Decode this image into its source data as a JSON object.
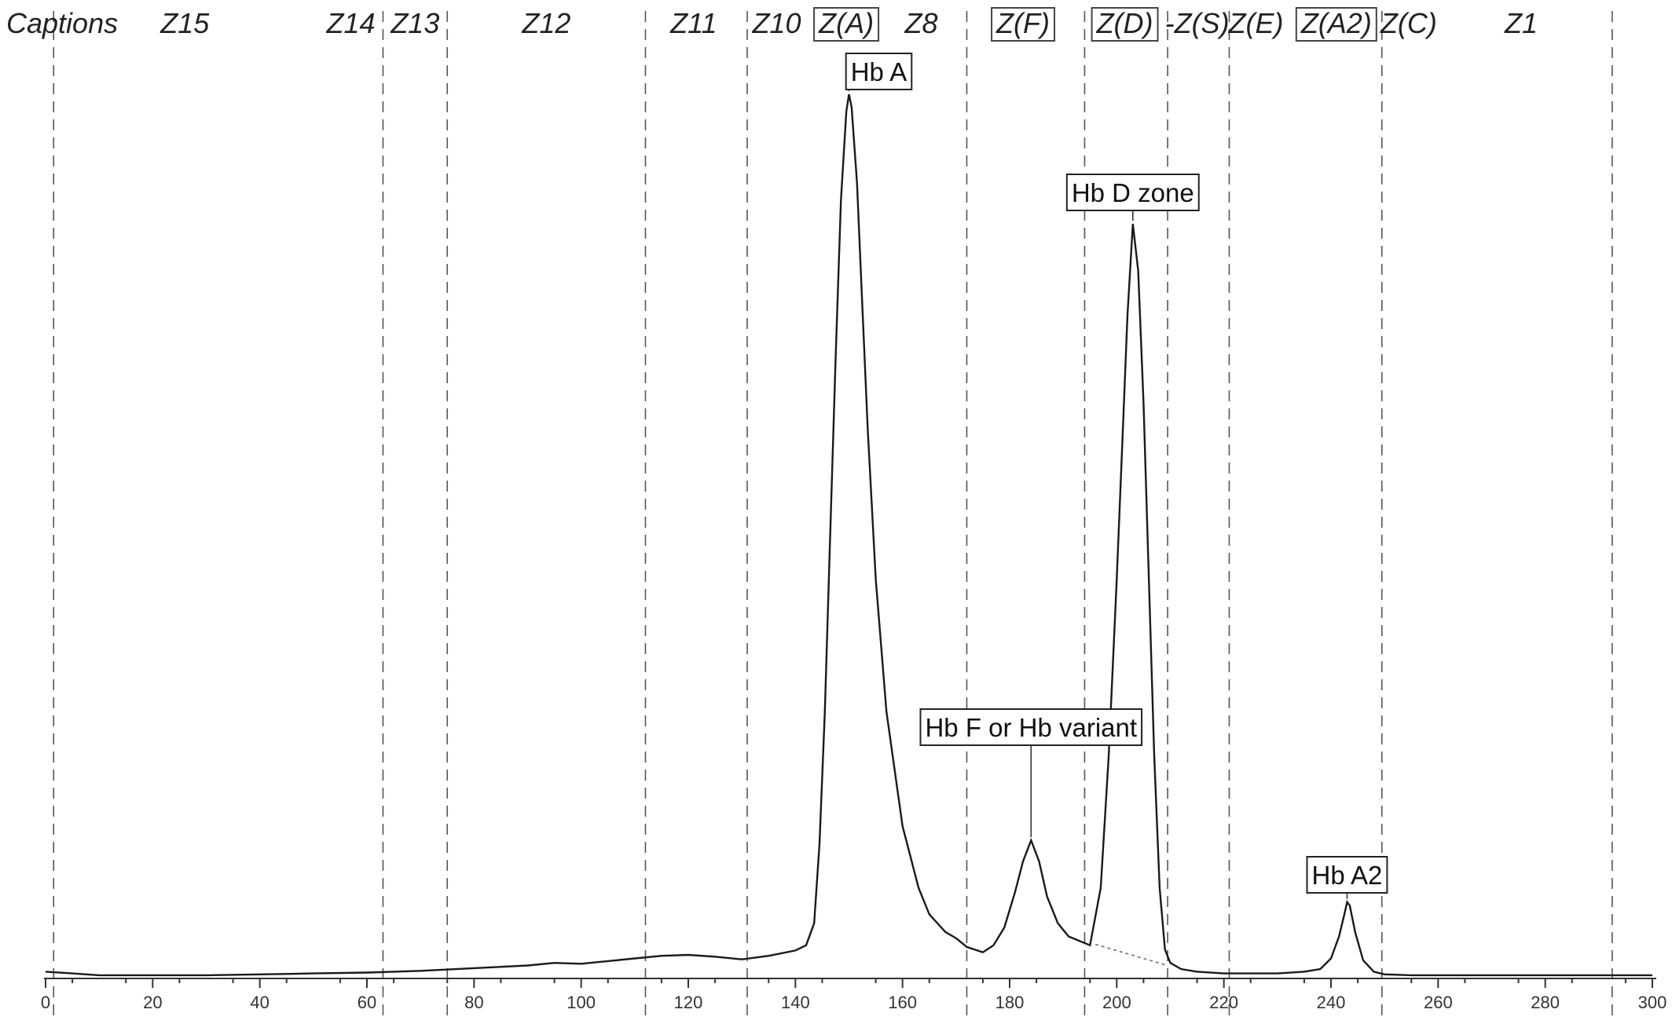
{
  "chart_data": {
    "type": "line",
    "title": "",
    "xlabel": "",
    "ylabel": "",
    "xlim": [
      0,
      300
    ],
    "x_ticks": [
      0,
      20,
      40,
      60,
      80,
      100,
      120,
      140,
      160,
      180,
      200,
      220,
      240,
      260,
      280,
      300
    ],
    "grid": false,
    "captions_label": "Captions",
    "zone_boundaries": [
      1.5,
      63,
      75,
      112,
      131,
      172,
      194,
      209.5,
      221,
      249.5,
      292.5
    ],
    "zones": [
      {
        "label": "Z15",
        "center": 26,
        "boxed": false
      },
      {
        "label": "Z14",
        "center": 57,
        "boxed": false
      },
      {
        "label": "Z13",
        "center": 69,
        "boxed": false
      },
      {
        "label": "Z12",
        "center": 93.5,
        "boxed": false
      },
      {
        "label": "Z11",
        "center": 121,
        "boxed": false
      },
      {
        "label": "Z10",
        "center": 136.5,
        "boxed": false
      },
      {
        "label": "Z(A)",
        "center": 149.5,
        "boxed": true
      },
      {
        "label": "Z8",
        "center": 163.5,
        "boxed": false
      },
      {
        "label": "Z(F)",
        "center": 182.5,
        "boxed": true
      },
      {
        "label": "Z(D)",
        "center": 201.5,
        "boxed": true
      },
      {
        "label": "-Z(S)",
        "center": 215,
        "boxed": false
      },
      {
        "label": "Z(E)",
        "center": 226,
        "boxed": false
      },
      {
        "label": "Z(A2)",
        "center": 241,
        "boxed": true
      },
      {
        "label": "Z(C)",
        "center": 254.5,
        "boxed": false
      },
      {
        "label": "Z1",
        "center": 275.5,
        "boxed": false
      }
    ],
    "peaks": [
      {
        "label": "Hb A",
        "x": 150,
        "height": 100
      },
      {
        "label": "Hb F or Hb variant",
        "x": 184,
        "height": 15.4
      },
      {
        "label": "Hb D zone",
        "x": 203,
        "height": 85.3
      },
      {
        "label": "Hb A2",
        "x": 243,
        "height": 8.4
      }
    ],
    "series": [
      {
        "x": [
          0,
          5,
          10,
          20,
          30,
          40,
          50,
          60,
          70,
          80,
          90,
          95,
          100,
          105,
          110,
          115,
          120,
          125,
          130,
          135,
          140,
          142,
          143.5,
          144.5,
          145.5,
          146.5,
          147.5,
          148.5,
          149.5,
          150,
          150.5,
          151.5,
          152.5,
          153.5,
          155,
          157,
          160,
          163,
          165,
          168,
          170,
          172,
          175,
          177,
          179,
          181,
          182.5,
          184,
          185.5,
          187,
          189,
          191,
          193,
          195,
          197,
          198.5,
          200,
          201,
          202,
          203,
          204,
          205,
          206,
          207,
          208,
          209,
          210,
          212,
          215,
          220,
          225,
          230,
          235,
          238,
          240,
          241.5,
          242.5,
          243,
          243.5,
          244.5,
          246,
          248,
          250,
          255,
          260,
          270,
          280,
          290,
          295,
          300
        ],
        "y": [
          0.5,
          0.3,
          0.1,
          0.1,
          0.1,
          0.2,
          0.3,
          0.4,
          0.6,
          0.9,
          1.2,
          1.5,
          1.4,
          1.7,
          2.0,
          2.3,
          2.4,
          2.2,
          1.9,
          2.3,
          2.9,
          3.5,
          6,
          15,
          30,
          50,
          70,
          88,
          98,
          100,
          98.5,
          90,
          76,
          62,
          45,
          30,
          17,
          10,
          7,
          5,
          4.3,
          3.3,
          2.7,
          3.5,
          5.5,
          9.5,
          13,
          15.4,
          13,
          9,
          6,
          4.5,
          4,
          3.5,
          10,
          25,
          45,
          60,
          75,
          85.3,
          80,
          65,
          45,
          25,
          10,
          3,
          1.5,
          0.8,
          0.5,
          0.3,
          0.3,
          0.3,
          0.5,
          0.8,
          2,
          4.5,
          7,
          8.4,
          8,
          5,
          1.8,
          0.5,
          0.2,
          0.1,
          0.1,
          0.1,
          0.1,
          0.1,
          0.1,
          0.1
        ]
      }
    ]
  }
}
